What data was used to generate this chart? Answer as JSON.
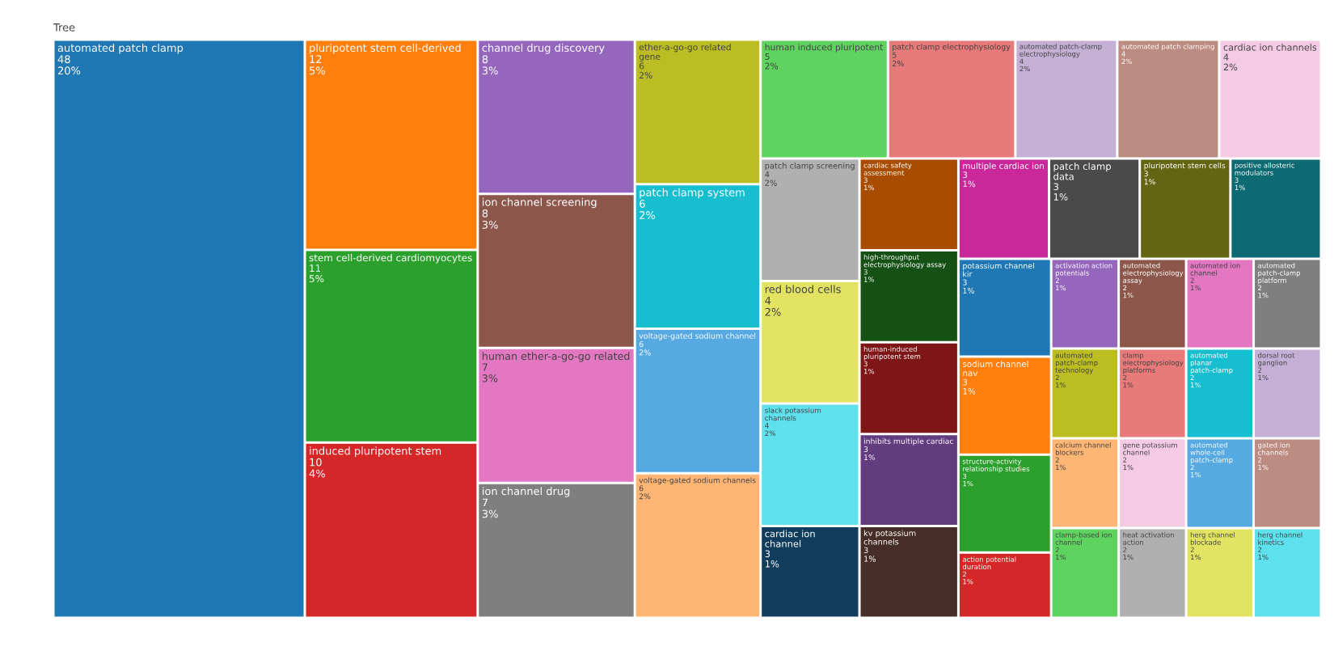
{
  "chart_data": {
    "type": "other",
    "title": "Tree",
    "categories": [
      "automated patch clamp",
      "pluripotent stem cell-derived",
      "stem cell-derived cardiomyocytes",
      "induced pluripotent stem",
      "channel drug discovery",
      "ion channel screening",
      "human ether-a-go-go related",
      "ion channel drug",
      "ether-a-go-go related gene",
      "patch clamp system",
      "voltage-gated sodium channel",
      "voltage-gated sodium channels",
      "human induced pluripotent",
      "patch clamp electrophysiology",
      "automated patch-clamp electrophysiology",
      "automated patch clamping",
      "cardiac ion channels",
      "patch clamp screening",
      "red blood cells",
      "slack potassium channels",
      "cardiac ion channel",
      "cardiac safety assessment",
      "high-throughput electrophysiology assay",
      "human-induced pluripotent stem",
      "inhibits multiple cardiac",
      "kv potassium channels",
      "multiple cardiac ion",
      "patch clamp data",
      "pluripotent stem cells",
      "positive allosteric modulators",
      "potassium channel kir",
      "sodium channel nav",
      "structure-activity relationship studies",
      "action potential duration",
      "activation action potentials",
      "automated electrophysiology assay",
      "automated ion channel",
      "automated patch-clamp platform",
      "automated patch-clamp technology",
      "calcium channel blockers",
      "clamp-based ion channel",
      "clamp electrophysiology platforms",
      "automated planar patch-clamp",
      "dorsal root ganglion",
      "gene potassium channel",
      "heat activation action",
      "automated whole-cell patch-clamp",
      "gated ion channels",
      "herg channel blockade",
      "herg channel kinetics"
    ],
    "values": [
      48,
      12,
      11,
      10,
      8,
      8,
      7,
      7,
      6,
      6,
      6,
      6,
      5,
      5,
      4,
      4,
      4,
      4,
      4,
      4,
      3,
      3,
      3,
      3,
      3,
      3,
      3,
      3,
      3,
      3,
      3,
      3,
      3,
      2,
      2,
      2,
      2,
      2,
      2,
      2,
      2,
      2,
      2,
      2,
      2,
      2,
      2,
      2,
      2,
      2
    ],
    "value_labels": [
      "48\n20%",
      "12\n5%",
      "11\n5%",
      "10\n4%",
      "8\n3%",
      "8\n3%",
      "7\n3%",
      "7\n3%",
      "6\n2%",
      "6\n2%",
      "6\n2%",
      "6\n2%",
      "5\n2%",
      "5\n2%",
      "4\n2%",
      "4\n2%",
      "4\n2%",
      "4\n2%",
      "4\n2%",
      "4\n2%",
      "3\n1%",
      "3\n1%",
      "3\n1%",
      "3\n1%",
      "3\n1%",
      "3\n1%",
      "3\n1%",
      "3\n1%",
      "3\n1%",
      "3\n1%",
      "3\n1%",
      "3\n1%",
      "3\n1%",
      "2\n1%",
      "2\n1%",
      "2\n1%",
      "2\n1%",
      "2\n1%",
      "2\n1%",
      "2\n1%",
      "2\n1%",
      "2\n1%",
      "2\n1%",
      "2\n1%",
      "2\n1%",
      "2\n1%",
      "2\n1%",
      "2\n1%",
      "2\n1%",
      "2\n1%"
    ],
    "colors": [
      "#1f77b4",
      "#ff7f0e",
      "#2ca02c",
      "#d62728",
      "#9467bd",
      "#8c564b",
      "#e377c2",
      "#7f7f7f",
      "#bcbd22",
      "#17becf",
      "#57a9e2",
      "#ffb574",
      "#5fd35f",
      "#e87a7a",
      "#c5b0d5",
      "#bc8b81",
      "#f4cae4",
      "#b0b0b0",
      "#e2e362",
      "#5fe0ed",
      "#103d5c",
      "#a84d00",
      "#155015",
      "#7e1618",
      "#633c80",
      "#472d27",
      "#c9279a",
      "#4a4a4a",
      "#646513",
      "#0e6a72",
      "#1f77b4",
      "#ff7f0e",
      "#2ca02c",
      "#d62728",
      "#9467bd",
      "#8c564b",
      "#e377c2",
      "#7f7f7f",
      "#bcbd22",
      "#ffb574",
      "#5fd35f",
      "#e87a7a",
      "#17becf",
      "#c5b0d5",
      "#f4cae4",
      "#b0b0b0",
      "#57a9e2",
      "#bc8b81",
      "#e2e362",
      "#5fe0ed"
    ],
    "data_labels": false
  }
}
